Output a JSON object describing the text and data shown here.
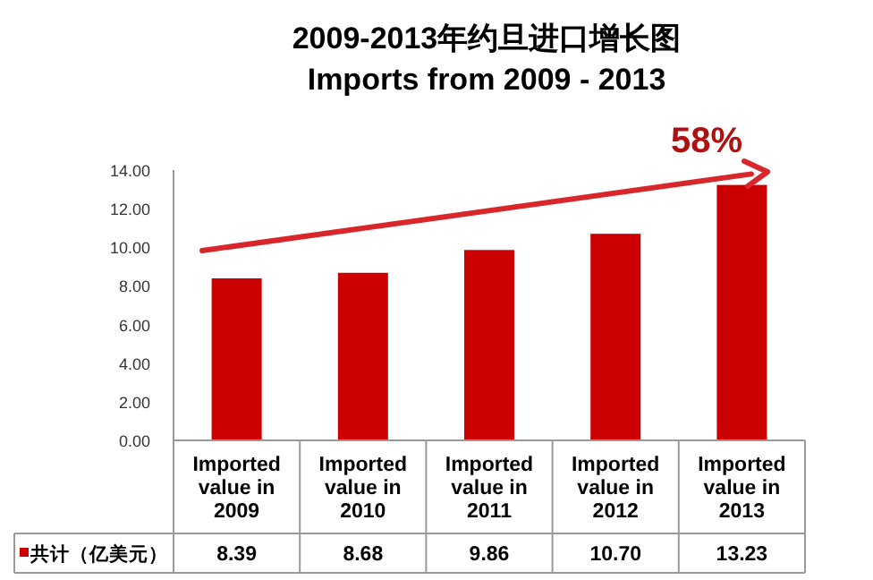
{
  "chart_data": {
    "type": "bar",
    "title": "2009-2013年约旦进口增长图",
    "subtitle": "Imports from 2009 - 2013",
    "categories": [
      "Imported value in 2009",
      "Imported value in 2010",
      "Imported value in 2011",
      "Imported value in 2012",
      "Imported value in 2013"
    ],
    "series": [
      {
        "name": "共计（亿美元）",
        "color": "#cc0000",
        "values": [
          8.39,
          8.68,
          9.86,
          10.7,
          13.23
        ],
        "value_labels": [
          "8.39",
          "8.68",
          "9.86",
          "10.70",
          "13.23"
        ]
      }
    ],
    "ylim": [
      0,
      14
    ],
    "yticks": [
      {
        "value": 0,
        "label": "0.00"
      },
      {
        "value": 2,
        "label": "2.00"
      },
      {
        "value": 4,
        "label": "4.00"
      },
      {
        "value": 6,
        "label": "6.00"
      },
      {
        "value": 8,
        "label": "8.00"
      },
      {
        "value": 10,
        "label": "10.00"
      },
      {
        "value": 12,
        "label": "12.00"
      },
      {
        "value": 14,
        "label": "14.00"
      }
    ],
    "annotations": [
      "58%"
    ],
    "grid": false,
    "legend": "bottom left"
  }
}
